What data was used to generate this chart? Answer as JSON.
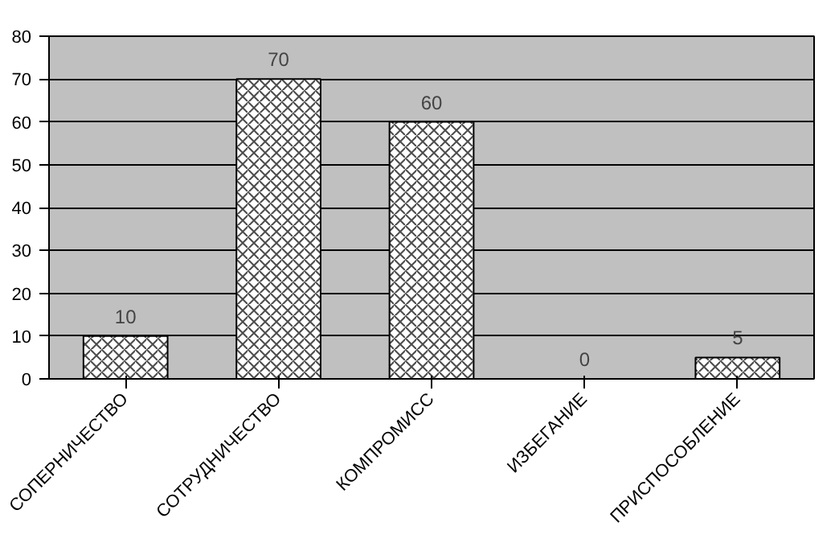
{
  "chart_data": {
    "type": "bar",
    "categories": [
      "СОПЕРНИЧЕСТВО",
      "СОТРУДНИЧЕСТВО",
      "КОМПРОМИСС",
      "ИЗБЕГАНИЕ",
      "ПРИСПОСОБЛЕНИЕ"
    ],
    "values": [
      10,
      70,
      60,
      0,
      5
    ],
    "color": "#ffffff",
    "ylim": [
      0,
      80
    ],
    "yticks": [
      0,
      10,
      20,
      30,
      40,
      50,
      60,
      70,
      80
    ],
    "grid": "y",
    "data_labels": true
  }
}
